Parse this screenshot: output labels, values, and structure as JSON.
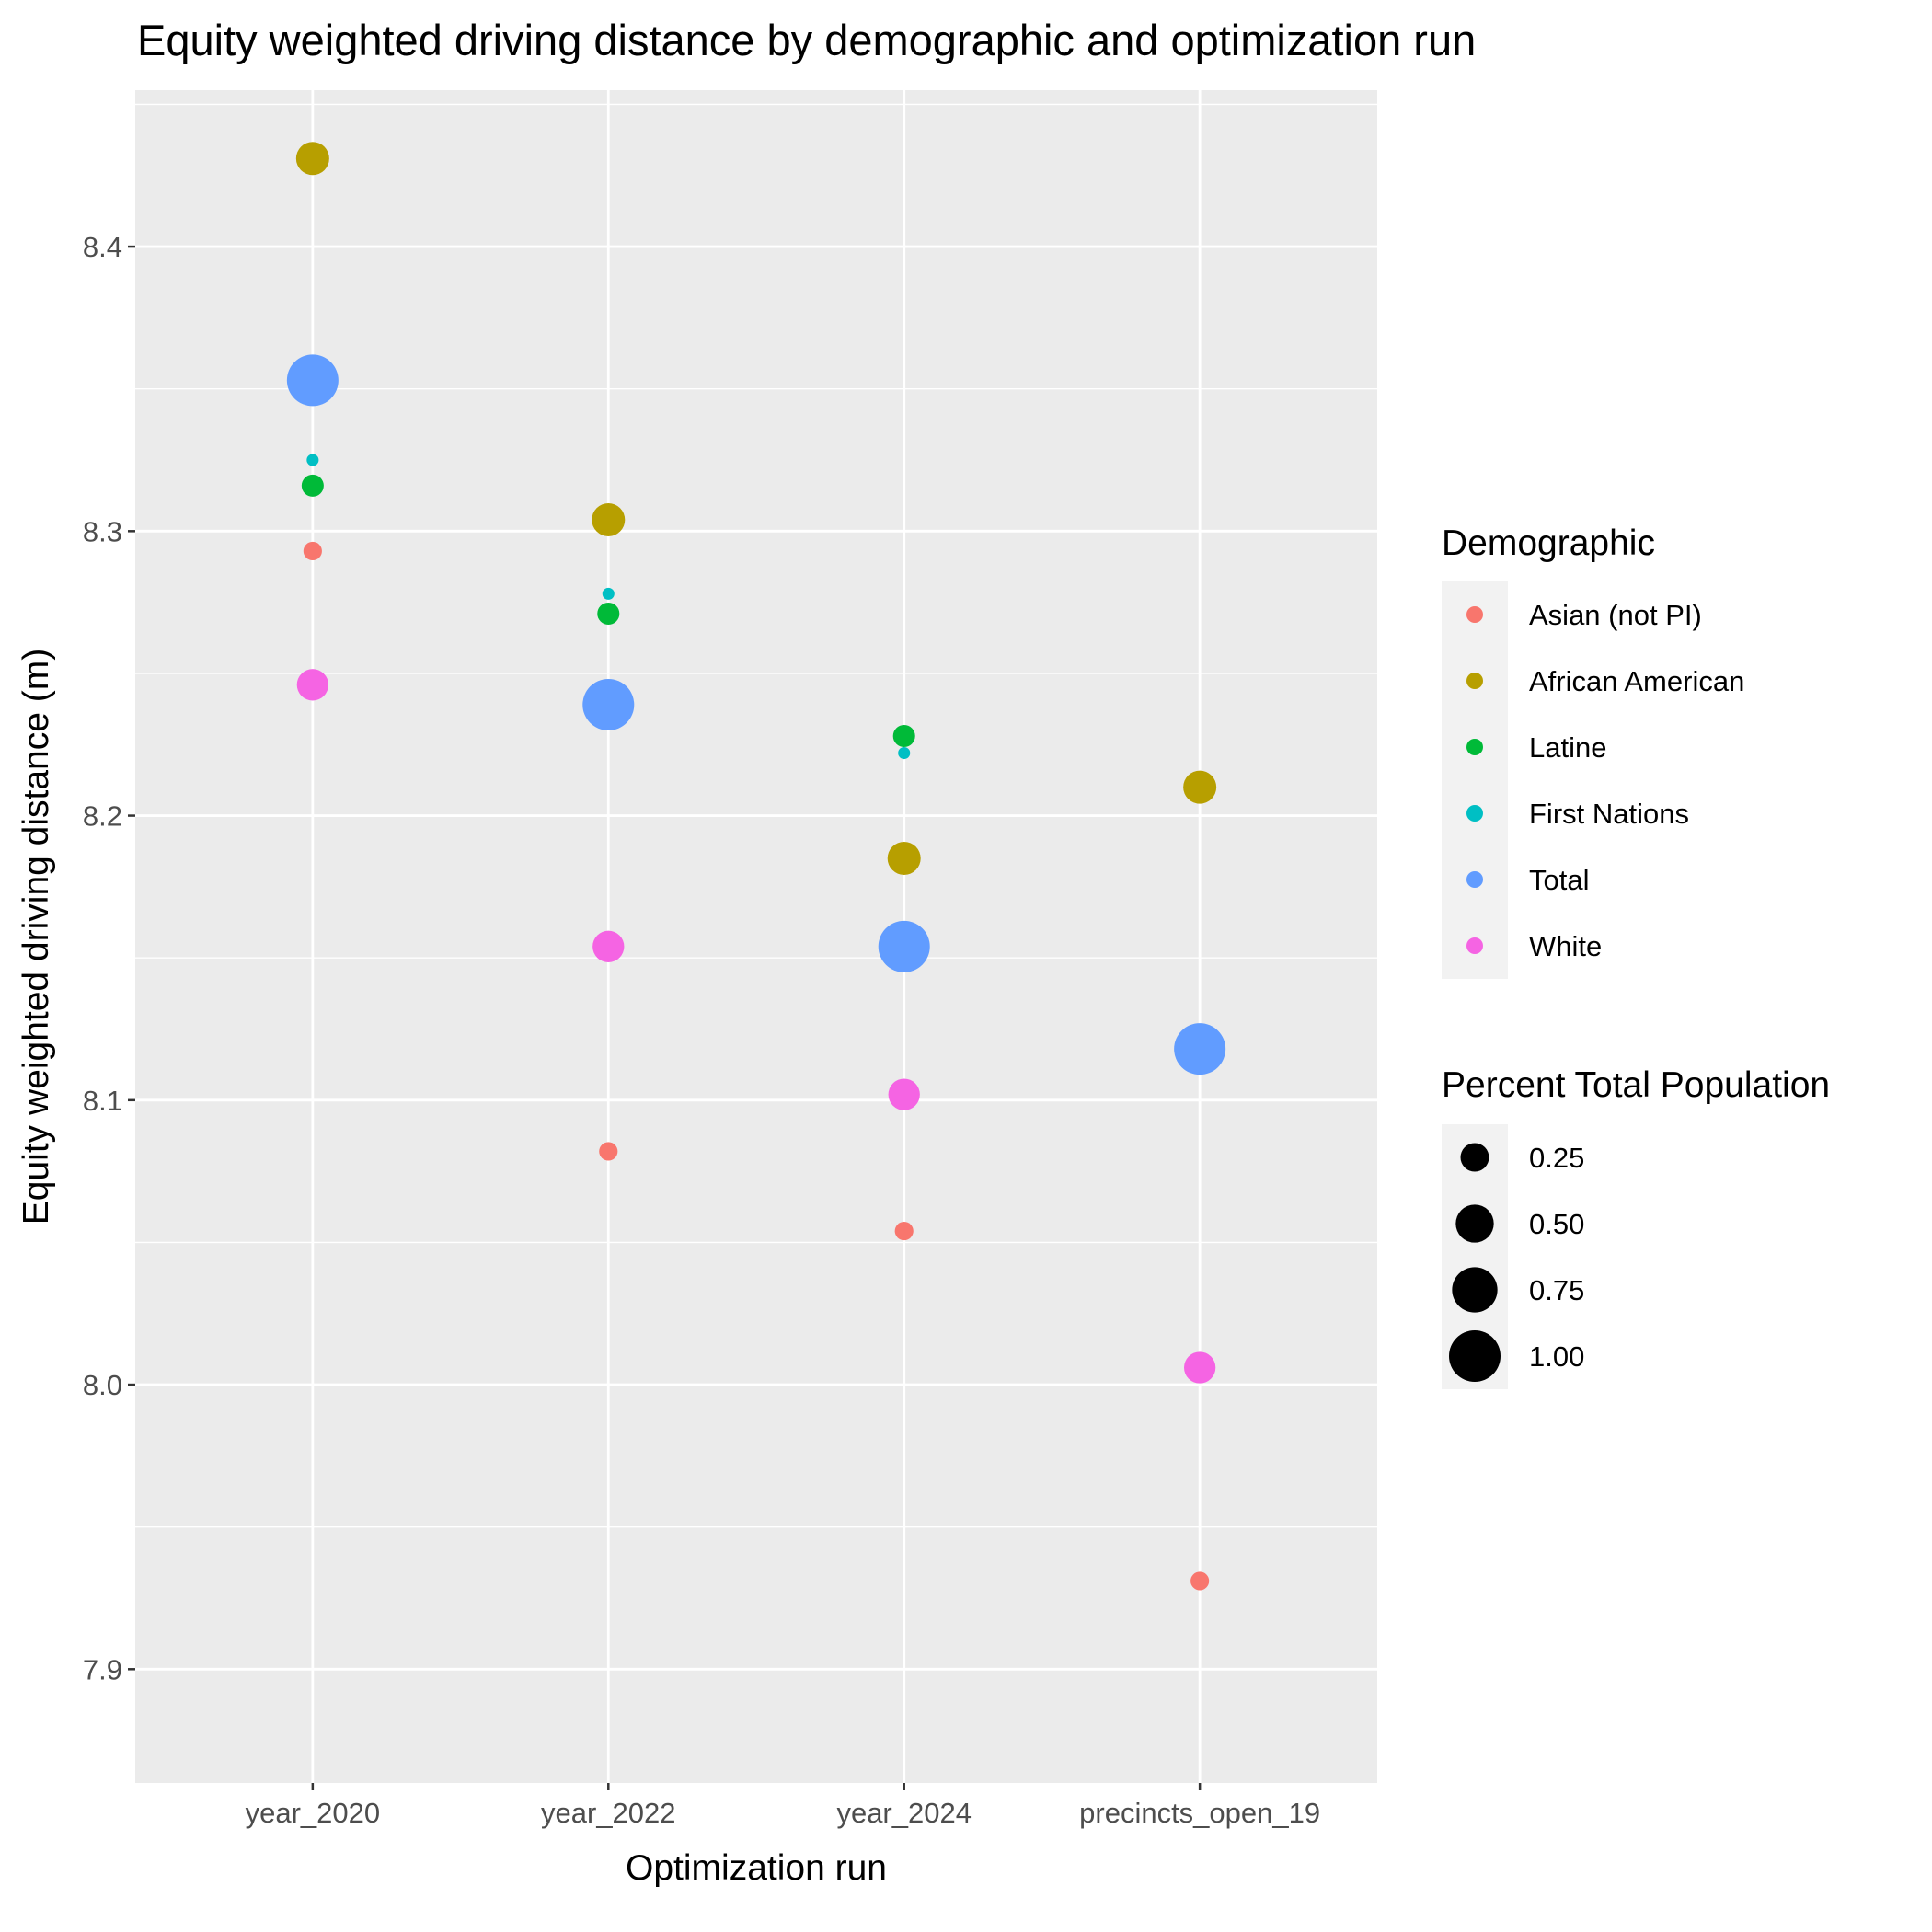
{
  "chart_data": {
    "type": "scatter",
    "title": "Equity weighted driving distance by demographic and optimization run",
    "xlabel": "Optimization run",
    "ylabel": "Equity weighted driving distance (m)",
    "categories": [
      "year_2020",
      "year_2022",
      "year_2024",
      "precincts_open_19"
    ],
    "yticks": [
      "7.9",
      "8.0",
      "8.1",
      "8.2",
      "8.3",
      "8.4"
    ],
    "ylim": [
      7.86,
      8.455
    ],
    "grid": true,
    "colors": {
      "panel_background": "#ebebeb",
      "grid": "#ffffff",
      "legend_key_background": "#f2f2f2"
    },
    "series": [
      {
        "name": "Asian (not PI)",
        "color": "#F8766D",
        "size": 0.08,
        "values": [
          8.293,
          8.082,
          8.054,
          7.931
        ]
      },
      {
        "name": "African American",
        "color": "#B79F00",
        "size": 0.36,
        "values": [
          8.431,
          8.304,
          8.185,
          8.21
        ]
      },
      {
        "name": "Latine",
        "color": "#00BA38",
        "size": 0.13,
        "values": [
          8.316,
          8.271,
          8.228,
          8.114
        ]
      },
      {
        "name": "First Nations",
        "color": "#00BFC4",
        "size": 0.02,
        "values": [
          8.325,
          8.278,
          8.222,
          8.114
        ]
      },
      {
        "name": "Total",
        "color": "#619CFF",
        "size": 1.0,
        "values": [
          8.353,
          8.239,
          8.154,
          8.118
        ]
      },
      {
        "name": "White",
        "color": "#F564E3",
        "size": 0.32,
        "values": [
          8.246,
          8.154,
          8.102,
          8.006
        ]
      }
    ],
    "legend": {
      "placement": "right",
      "color_title": "Demographic",
      "size_title": "Percent Total Population",
      "size_breaks": [
        {
          "label": "0.25",
          "value": 0.25
        },
        {
          "label": "0.50",
          "value": 0.5
        },
        {
          "label": "0.75",
          "value": 0.75
        },
        {
          "label": "1.00",
          "value": 1.0
        }
      ]
    }
  }
}
